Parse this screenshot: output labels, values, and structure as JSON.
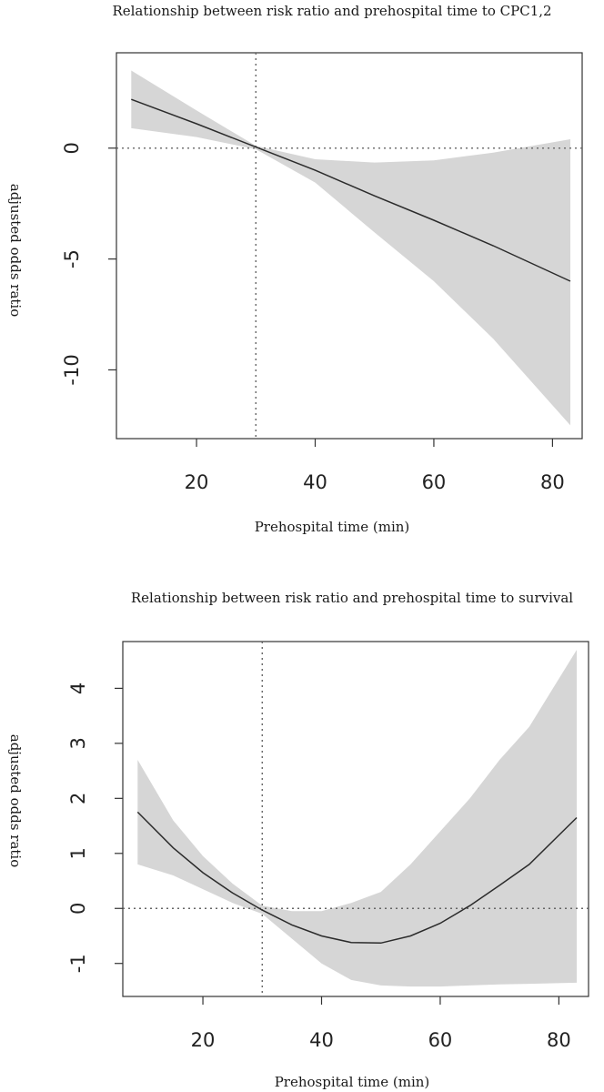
{
  "chart_data": [
    {
      "type": "line",
      "title": "Relationship between risk ratio and prehospital time to CPC1,2",
      "xlabel": "Prehospital time (min)",
      "ylabel": "adjusted odds ratio",
      "xlim": [
        6.5,
        85
      ],
      "ylim": [
        -13.1,
        4.3
      ],
      "xticks": [
        20,
        40,
        60,
        80
      ],
      "yticks": [
        0,
        -5,
        -10
      ],
      "xtick_labels": [
        "20",
        "40",
        "60",
        "80"
      ],
      "ytick_labels": [
        "0",
        "-5",
        "-10"
      ],
      "vline": 30,
      "hline": 0,
      "x": [
        9,
        20,
        30,
        40,
        50,
        60,
        70,
        83
      ],
      "y": [
        2.2,
        1.1,
        0.05,
        -1.0,
        -2.15,
        -3.25,
        -4.4,
        -6.0
      ],
      "lower": [
        0.9,
        0.5,
        -0.05,
        -1.55,
        -3.8,
        -6.0,
        -8.6,
        -12.5
      ],
      "upper": [
        3.5,
        1.7,
        0.1,
        -0.5,
        -0.65,
        -0.55,
        -0.2,
        0.4
      ]
    },
    {
      "type": "line",
      "title": "Relationship between risk ratio and prehospital time to survival",
      "xlabel": "Prehospital time (min)",
      "ylabel": "adjusted odds ratio",
      "xlim": [
        6.5,
        85
      ],
      "ylim": [
        -1.6,
        4.85
      ],
      "xticks": [
        20,
        40,
        60,
        80
      ],
      "yticks": [
        -1,
        0,
        1,
        2,
        3,
        4
      ],
      "xtick_labels": [
        "20",
        "40",
        "60",
        "80"
      ],
      "ytick_labels": [
        "-1",
        "0",
        "1",
        "2",
        "3",
        "4"
      ],
      "vline": 30,
      "hline": 0,
      "x": [
        9,
        15,
        20,
        25,
        30,
        35,
        40,
        45,
        50,
        55,
        60,
        65,
        70,
        75,
        83
      ],
      "y": [
        1.75,
        1.1,
        0.65,
        0.28,
        -0.03,
        -0.3,
        -0.5,
        -0.62,
        -0.63,
        -0.5,
        -0.27,
        0.05,
        0.42,
        0.8,
        1.65
      ],
      "lower": [
        0.8,
        0.6,
        0.35,
        0.1,
        -0.1,
        -0.55,
        -1.0,
        -1.3,
        -1.4,
        -1.42,
        -1.42,
        -1.4,
        -1.38,
        -1.37,
        -1.35
      ],
      "upper": [
        2.7,
        1.6,
        0.95,
        0.45,
        0.05,
        -0.05,
        -0.05,
        0.1,
        0.3,
        0.8,
        1.4,
        2.0,
        2.7,
        3.3,
        4.7
      ]
    }
  ]
}
